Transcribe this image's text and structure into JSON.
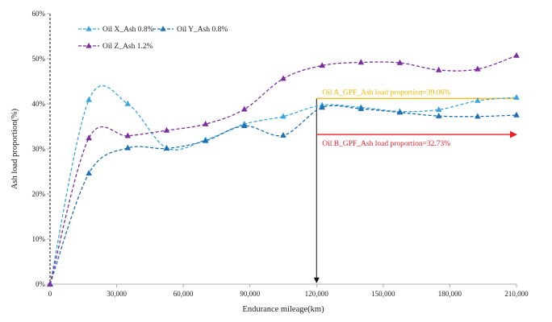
{
  "chart_data": {
    "type": "line",
    "xlabel": "Endurance mileage(km)",
    "ylabel": "Ash load proportion(%)",
    "xlim": [
      0,
      210000
    ],
    "ylim": [
      0,
      60
    ],
    "x_ticks": [
      "0",
      "30,000",
      "60,000",
      "90,000",
      "120,000",
      "150,000",
      "180,000",
      "210,000"
    ],
    "y_ticks": [
      "0%",
      "10%",
      "20%",
      "30%",
      "40%",
      "50%",
      "60%"
    ],
    "grid": false,
    "legend_position": "top-left",
    "series": [
      {
        "name": "Oil X_Ash 0.8%",
        "color": "#3aa6dc",
        "x": [
          0,
          17500,
          35000,
          52500,
          70000,
          87500,
          105000,
          122500,
          140000,
          157500,
          175000,
          192500,
          210000
        ],
        "values": [
          0,
          40.9,
          40.0,
          30.2,
          32.0,
          35.5,
          37.2,
          39.7,
          39.2,
          38.3,
          38.7,
          40.7,
          41.4
        ]
      },
      {
        "name": "Oil Y_Ash 0.8%",
        "color": "#1f6fb2",
        "x": [
          0,
          17500,
          35000,
          52500,
          70000,
          87500,
          105000,
          122500,
          140000,
          157500,
          175000,
          192500,
          210000
        ],
        "values": [
          0,
          24.6,
          30.2,
          30.1,
          31.8,
          35.1,
          33.0,
          39.2,
          38.9,
          38.1,
          37.3,
          37.2,
          37.5
        ]
      },
      {
        "name": "Oil Z_Ash 1.2%",
        "color": "#7b2d9e",
        "x": [
          0,
          17500,
          35000,
          52500,
          70000,
          87500,
          105000,
          122500,
          140000,
          157500,
          175000,
          192500,
          210000
        ],
        "values": [
          0,
          32.4,
          32.9,
          34.1,
          35.5,
          38.8,
          45.6,
          48.5,
          49.2,
          49.1,
          47.5,
          47.7,
          50.7
        ]
      }
    ],
    "annotations": [
      {
        "text": "Oil A_GPF_Ash load proportion=39.06%",
        "color": "#f5b800",
        "x_start": 120000,
        "x_end": 210000,
        "y": 41.2
      },
      {
        "text": "Oil B_GPF_Ash load proportion=32.73%",
        "color": "#e8202a",
        "x_start": 120000,
        "x_end": 210000,
        "y": 33.2
      }
    ],
    "marker_line": {
      "x": 120000,
      "color": "#111111"
    }
  }
}
